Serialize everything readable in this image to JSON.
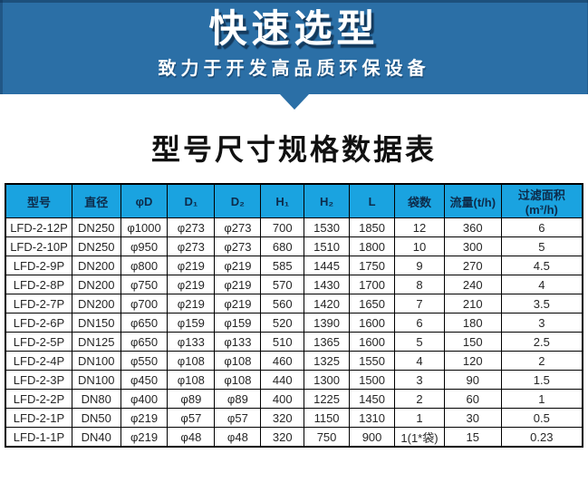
{
  "banner": {
    "title": "快速选型",
    "subtitle": "致力于开发高品质环保设备",
    "background_color": "#2b6fa6"
  },
  "section": {
    "title": "型号尺寸规格数据表"
  },
  "table": {
    "header_background_color": "#1aa3e0",
    "header_text_color": "#0d2b4a",
    "columns": [
      "型号",
      "直径",
      "φD",
      "D₁",
      "D₂",
      "H₁",
      "H₂",
      "L",
      "袋数",
      "流量(t/h)",
      "过滤面积(m³/h)"
    ],
    "rows": [
      [
        "LFD-2-12P",
        "DN250",
        "φ1000",
        "φ273",
        "φ273",
        "700",
        "1530",
        "1850",
        "12",
        "360",
        "6"
      ],
      [
        "LFD-2-10P",
        "DN250",
        "φ950",
        "φ273",
        "φ273",
        "680",
        "1510",
        "1800",
        "10",
        "300",
        "5"
      ],
      [
        "LFD-2-9P",
        "DN200",
        "φ800",
        "φ219",
        "φ219",
        "585",
        "1445",
        "1750",
        "9",
        "270",
        "4.5"
      ],
      [
        "LFD-2-8P",
        "DN200",
        "φ750",
        "φ219",
        "φ219",
        "570",
        "1430",
        "1700",
        "8",
        "240",
        "4"
      ],
      [
        "LFD-2-7P",
        "DN200",
        "φ700",
        "φ219",
        "φ219",
        "560",
        "1420",
        "1650",
        "7",
        "210",
        "3.5"
      ],
      [
        "LFD-2-6P",
        "DN150",
        "φ650",
        "φ159",
        "φ159",
        "520",
        "1390",
        "1600",
        "6",
        "180",
        "3"
      ],
      [
        "LFD-2-5P",
        "DN125",
        "φ650",
        "φ133",
        "φ133",
        "510",
        "1365",
        "1600",
        "5",
        "150",
        "2.5"
      ],
      [
        "LFD-2-4P",
        "DN100",
        "φ550",
        "φ108",
        "φ108",
        "460",
        "1325",
        "1550",
        "4",
        "120",
        "2"
      ],
      [
        "LFD-2-3P",
        "DN100",
        "φ450",
        "φ108",
        "φ108",
        "440",
        "1300",
        "1500",
        "3",
        "90",
        "1.5"
      ],
      [
        "LFD-2-2P",
        "DN80",
        "φ400",
        "φ89",
        "φ89",
        "400",
        "1225",
        "1450",
        "2",
        "60",
        "1"
      ],
      [
        "LFD-2-1P",
        "DN50",
        "φ219",
        "φ57",
        "φ57",
        "320",
        "1150",
        "1310",
        "1",
        "30",
        "0.5"
      ],
      [
        "LFD-1-1P",
        "DN40",
        "φ219",
        "φ48",
        "φ48",
        "320",
        "750",
        "900",
        "1(1*袋)",
        "15",
        "0.23"
      ]
    ]
  }
}
